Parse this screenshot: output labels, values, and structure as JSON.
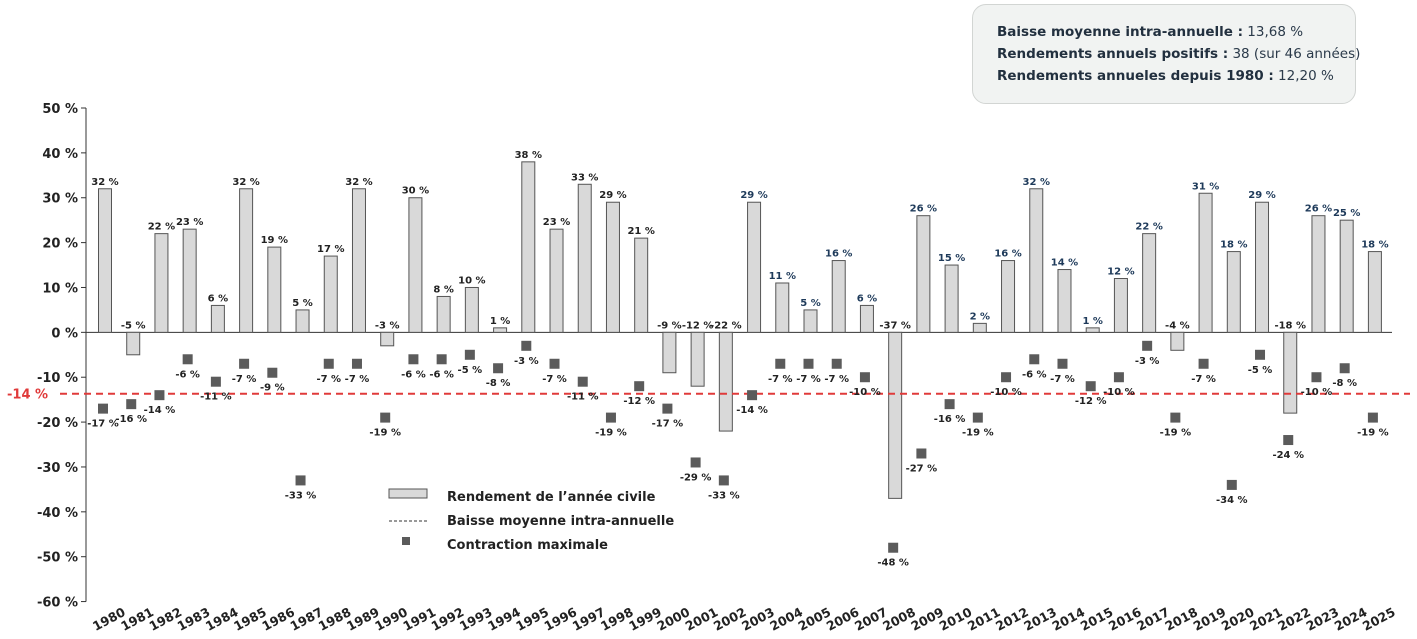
{
  "info": {
    "line1_label": "Baisse moyenne intra-annuelle :",
    "line1_value": "13,68 %",
    "line2_label": "Rendements annuels positifs :",
    "line2_value": "38 (sur 46 années)",
    "line3_label": "Rendements annueles depuis 1980 :",
    "line3_value": "12,20 %"
  },
  "chart_data": {
    "type": "bar",
    "title": "",
    "xlabel": "",
    "ylabel": "",
    "ylim": [
      -60,
      50
    ],
    "yticks": [
      50,
      40,
      30,
      20,
      10,
      0,
      -10,
      -20,
      -30,
      -40,
      -50,
      -60
    ],
    "ytick_labels": [
      "50 %",
      "40 %",
      "30 %",
      "20 %",
      "10 %",
      "0 %",
      "-10 %",
      "-20 %",
      "-30 %",
      "-40 %",
      "-50 %",
      "-60 %"
    ],
    "categories": [
      "1980",
      "1981",
      "1982",
      "1983",
      "1984",
      "1985",
      "1986",
      "1987",
      "1988",
      "1989",
      "1990",
      "1991",
      "1992",
      "1993",
      "1994",
      "1995",
      "1996",
      "1997",
      "1998",
      "1999",
      "2000",
      "2001",
      "2002",
      "2003",
      "2004",
      "2005",
      "2006",
      "2007",
      "2008",
      "2009",
      "2010",
      "2011",
      "2012",
      "2013",
      "2014",
      "2015",
      "2016",
      "2017",
      "2018",
      "2019",
      "2020",
      "2021",
      "2022",
      "2023",
      "2024",
      "2025"
    ],
    "series": [
      {
        "name": "Rendement de l’année civile",
        "values": [
          32,
          -5,
          22,
          23,
          6,
          32,
          19,
          5,
          17,
          32,
          -3,
          30,
          8,
          10,
          1,
          38,
          23,
          33,
          29,
          21,
          -9,
          -12,
          -22,
          29,
          11,
          5,
          16,
          6,
          -37,
          26,
          15,
          2,
          16,
          32,
          14,
          1,
          12,
          22,
          -4,
          31,
          18,
          29,
          -18,
          26,
          25,
          18
        ],
        "labels": [
          "32 %",
          "-5 %",
          "22 %",
          "23 %",
          "6 %",
          "32 %",
          "19 %",
          "5 %",
          "17 %",
          "32 %",
          "-3 %",
          "30 %",
          "8 %",
          "10 %",
          "1 %",
          "38 %",
          "23 %",
          "33 %",
          "29 %",
          "21 %",
          "-9 %",
          "-12 %",
          "-22 %",
          "29 %",
          "11 %",
          "5 %",
          "16 %",
          "6 %",
          "-37 %",
          "26 %",
          "15 %",
          "2 %",
          "16 %",
          "32 %",
          "14 %",
          "1 %",
          "12 %",
          "22 %",
          "-4 %",
          "31 %",
          "18 %",
          "29 %",
          "-18 %",
          "26 %",
          "25 %",
          "18 %"
        ]
      },
      {
        "name": "Contraction maximale",
        "values": [
          -17,
          -16,
          -14,
          -6,
          -11,
          -7,
          -9,
          -33,
          -7,
          -7,
          -19,
          -6,
          -6,
          -5,
          -8,
          -3,
          -7,
          -11,
          -19,
          -12,
          -17,
          -29,
          -33,
          -14,
          -7,
          -7,
          -7,
          -10,
          -48,
          -27,
          -16,
          -19,
          -10,
          -6,
          -7,
          -12,
          -10,
          -3,
          -19,
          -7,
          -34,
          -5,
          -24,
          -10,
          -8,
          -19
        ],
        "labels": [
          "-17 %",
          "-16 %",
          "-14 %",
          "-6 %",
          "-11 %",
          "-7 %",
          "-9 %",
          "-33 %",
          "-7 %",
          "-7 %",
          "-19 %",
          "-6 %",
          "-6 %",
          "-5 %",
          "-8 %",
          "-3 %",
          "-7 %",
          "-11 %",
          "-19 %",
          "-12 %",
          "-17 %",
          "-29 %",
          "-33 %",
          "-14 %",
          "-7 %",
          "-7 %",
          "-7 %",
          "-10 %",
          "-48 %",
          "-27 %",
          "-16 %",
          "-19 %",
          "-10 %",
          "-6 %",
          "-7 %",
          "-12 %",
          "-10 %",
          "-3 %",
          "-19 %",
          "-7 %",
          "-34 %",
          "-5 %",
          "-24 %",
          "-10 %",
          "-8 %",
          "-19 %"
        ]
      }
    ],
    "reference_line": {
      "name": "Baisse moyenne intra-annuelle",
      "value": -13.68,
      "label": "-14 %"
    },
    "legend": {
      "placement": "bottom-center",
      "entries": [
        "Rendement de l’année civile",
        "Baisse moyenne intra-annuelle",
        "Contraction maximale"
      ]
    },
    "grid": false,
    "colors": {
      "bar_fill": "#d9d9d9",
      "bar_stroke": "#555555",
      "marker": "#5b5b5b",
      "reference_line": "#e03a3a",
      "label_dark": "#222222",
      "label_blue": "#1e3a5a"
    }
  }
}
